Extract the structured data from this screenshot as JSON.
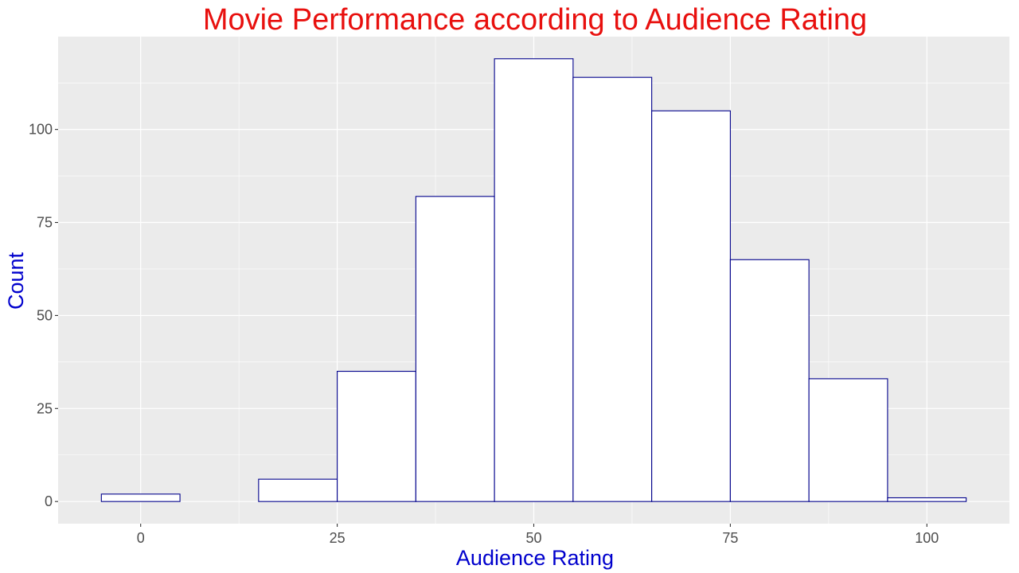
{
  "chart_data": {
    "type": "bar",
    "title": "Movie Performance according to Audience Rating",
    "xlabel": "Audience Rating",
    "ylabel": "Count",
    "bin_width": 10,
    "bins": [
      {
        "x_start": -5,
        "x_end": 5,
        "count": 2
      },
      {
        "x_start": 5,
        "x_end": 15,
        "count": 0
      },
      {
        "x_start": 15,
        "x_end": 25,
        "count": 6
      },
      {
        "x_start": 25,
        "x_end": 35,
        "count": 35
      },
      {
        "x_start": 35,
        "x_end": 45,
        "count": 82
      },
      {
        "x_start": 45,
        "x_end": 55,
        "count": 119
      },
      {
        "x_start": 55,
        "x_end": 65,
        "count": 114
      },
      {
        "x_start": 65,
        "x_end": 75,
        "count": 105
      },
      {
        "x_start": 75,
        "x_end": 85,
        "count": 65
      },
      {
        "x_start": 85,
        "x_end": 95,
        "count": 33
      },
      {
        "x_start": 95,
        "x_end": 105,
        "count": 1
      }
    ],
    "xlim": [
      -10.5,
      110.5
    ],
    "ylim": [
      -5.95,
      124.95
    ],
    "xticks": [
      0,
      25,
      50,
      75,
      100
    ],
    "yticks": [
      0,
      25,
      50,
      75,
      100
    ],
    "grid": true,
    "colors": {
      "title": "#e8100e",
      "axis_title": "#0000cd",
      "bar_fill": "#ffffff",
      "bar_outline": "#00008b",
      "panel_bg": "#ebebeb",
      "grid": "#ffffff",
      "tick_label": "#4d4d4d",
      "tick": "#333333"
    }
  }
}
